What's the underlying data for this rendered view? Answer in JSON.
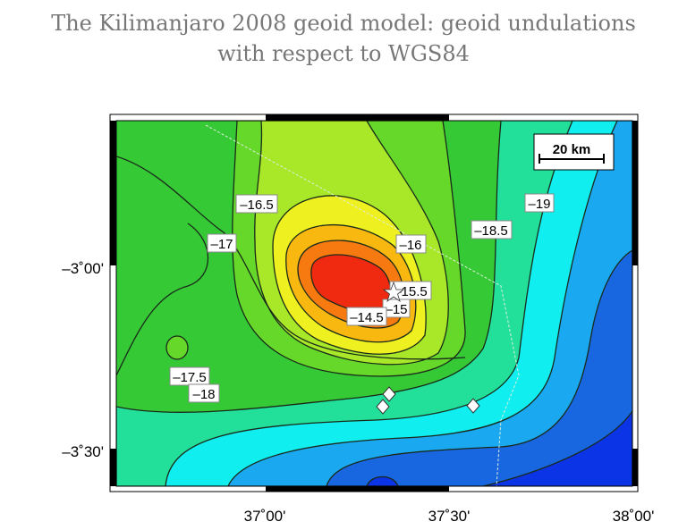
{
  "title": {
    "line1": "The Kilimanjaro 2008 geoid model: geoid undulations",
    "line2": "with respect to WGS84"
  },
  "map": {
    "x_ticks": [
      "37˚00'",
      "37˚30'",
      "38˚00'"
    ],
    "y_ticks": [
      "–3˚00'",
      "–3˚30'"
    ],
    "scale_bar": "20 km",
    "contour_labels": [
      "–16.5",
      "–17",
      "–16",
      "–15.5",
      "–15",
      "–14.5",
      "–17.5",
      "–18",
      "–18.5",
      "–19"
    ],
    "markers": {
      "summit": "star-icon",
      "stations": "diamond-icon"
    },
    "colors": {
      "red": "#f02a10",
      "orange": "#f77a10",
      "yellow_orange": "#f8b810",
      "yellow": "#eef020",
      "yellow_green": "#a8e828",
      "lime": "#66d82a",
      "green": "#36c936",
      "teal": "#22e09a",
      "cyan": "#10eef0",
      "light_blue": "#1aa8f0",
      "blue": "#1866e0",
      "dark_blue": "#0a34e6"
    }
  }
}
